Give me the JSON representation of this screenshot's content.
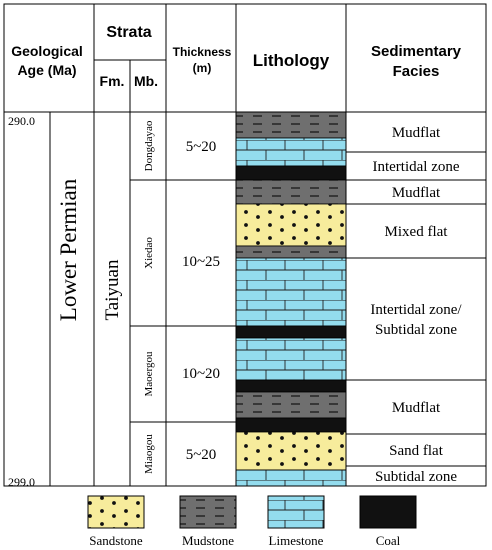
{
  "header": {
    "geological_age": [
      "Geological",
      "Age (Ma)"
    ],
    "strata": "Strata",
    "formation": "Fm.",
    "member": "Mb.",
    "thickness": [
      "Thickness",
      "(m)"
    ],
    "lithology": "Lithology",
    "sedimentary_facies": [
      "Sedimentary",
      "Facies"
    ]
  },
  "age": {
    "top": "290.0",
    "bottom": "299.0",
    "series": "Lower Permian"
  },
  "formation": "Taiyuan",
  "members": [
    {
      "name": "Dongdayao",
      "thickness": "5~20"
    },
    {
      "name": "Xiedao",
      "thickness": "10~25"
    },
    {
      "name": "Maoergou",
      "thickness": "10~20"
    },
    {
      "name": "Miaogou",
      "thickness": "5~20"
    }
  ],
  "facies": [
    {
      "lines": [
        "Mudflat"
      ]
    },
    {
      "lines": [
        "Intertidal zone"
      ]
    },
    {
      "lines": [
        "Mudflat"
      ]
    },
    {
      "lines": [
        "Mixed flat"
      ]
    },
    {
      "lines": [
        "Intertidal zone/",
        "Subtidal zone"
      ]
    },
    {
      "lines": [
        "Mudflat"
      ]
    },
    {
      "lines": [
        "Sand flat"
      ]
    },
    {
      "lines": [
        "Subtidal zone"
      ]
    }
  ],
  "lithology_column": [
    {
      "rock": "mudstone"
    },
    {
      "rock": "limestone"
    },
    {
      "rock": "coal"
    },
    {
      "rock": "mudstone"
    },
    {
      "rock": "sandstone"
    },
    {
      "rock": "mudstone"
    },
    {
      "rock": "limestone"
    },
    {
      "rock": "coal"
    },
    {
      "rock": "limestone"
    },
    {
      "rock": "coal"
    },
    {
      "rock": "mudstone"
    },
    {
      "rock": "coal"
    },
    {
      "rock": "sandstone"
    },
    {
      "rock": "limestone"
    }
  ],
  "legend": [
    {
      "rock": "sandstone",
      "label": "Sandstone"
    },
    {
      "rock": "mudstone",
      "label": "Mudstone"
    },
    {
      "rock": "limestone",
      "label": "Limestone"
    },
    {
      "rock": "coal",
      "label": "Coal"
    }
  ],
  "colors": {
    "sandstone": "#f7ec9c",
    "mudstone": "#6f6f6f",
    "limestone": "#93dcee",
    "coal": "#111111"
  }
}
